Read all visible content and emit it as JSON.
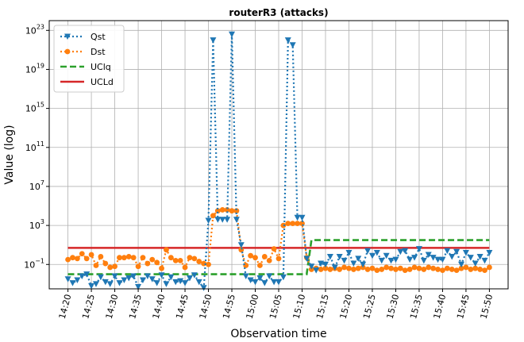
{
  "chart_data": {
    "type": "line",
    "title": "routerR3 (attacks)",
    "xlabel": "Observation time",
    "ylabel": "Value (log)",
    "y_scale": "log",
    "ylim_log10": [
      -3.5,
      24
    ],
    "y_ticks": [
      {
        "exp": -1,
        "base": "10",
        "sup": "−1"
      },
      {
        "exp": 3,
        "base": "10",
        "sup": "3"
      },
      {
        "exp": 7,
        "base": "10",
        "sup": "7"
      },
      {
        "exp": 11,
        "base": "10",
        "sup": "11"
      },
      {
        "exp": 15,
        "base": "10",
        "sup": "15"
      },
      {
        "exp": 19,
        "base": "10",
        "sup": "19"
      },
      {
        "exp": 23,
        "base": "10",
        "sup": "23"
      }
    ],
    "x_ticks": [
      "14:20",
      "14:25",
      "14:30",
      "14:35",
      "14:40",
      "14:45",
      "14:50",
      "14:55",
      "15:00",
      "15:05",
      "15:10",
      "15:15",
      "15:20",
      "15:25",
      "15:30",
      "15:35",
      "15:40",
      "15:45",
      "15:50"
    ],
    "x_range": [
      "14:20",
      "15:50"
    ],
    "grid": true,
    "legend_position": "top-left",
    "series": [
      {
        "name": "Qst",
        "style": "dotted",
        "marker": "triangle-down",
        "color": "#1f77b4"
      },
      {
        "name": "Dst",
        "style": "dotted",
        "marker": "circle",
        "color": "#ff7f0e"
      },
      {
        "name": "UClq",
        "style": "dashed",
        "color": "#2ca02c"
      },
      {
        "name": "UCLd",
        "style": "solid",
        "color": "#d62728"
      }
    ],
    "times": [
      "14:20",
      "14:21",
      "14:22",
      "14:23",
      "14:24",
      "14:25",
      "14:26",
      "14:27",
      "14:28",
      "14:29",
      "14:30",
      "14:31",
      "14:32",
      "14:33",
      "14:34",
      "14:35",
      "14:36",
      "14:37",
      "14:38",
      "14:39",
      "14:40",
      "14:41",
      "14:42",
      "14:43",
      "14:44",
      "14:45",
      "14:46",
      "14:47",
      "14:48",
      "14:49",
      "14:50",
      "14:51",
      "14:52",
      "14:53",
      "14:54",
      "14:55",
      "14:56",
      "14:57",
      "14:58",
      "14:59",
      "15:00",
      "15:01",
      "15:02",
      "15:03",
      "15:04",
      "15:05",
      "15:06",
      "15:07",
      "15:08",
      "15:09",
      "15:10",
      "15:11",
      "15:12",
      "15:13",
      "15:14",
      "15:15",
      "15:16",
      "15:17",
      "15:18",
      "15:19",
      "15:20",
      "15:21",
      "15:22",
      "15:23",
      "15:24",
      "15:25",
      "15:26",
      "15:27",
      "15:28",
      "15:29",
      "15:30",
      "15:31",
      "15:32",
      "15:33",
      "15:34",
      "15:35",
      "15:36",
      "15:37",
      "15:38",
      "15:39",
      "15:40",
      "15:41",
      "15:42",
      "15:43",
      "15:44",
      "15:45",
      "15:46",
      "15:47",
      "15:48",
      "15:49",
      "15:50"
    ],
    "Qst_log10": [
      -2.5,
      -2.9,
      -2.6,
      -2.2,
      -2.0,
      -3.2,
      -3.0,
      -2.3,
      -2.8,
      -3.0,
      -2.2,
      -2.9,
      -2.6,
      -2.4,
      -2.2,
      -3.3,
      -2.6,
      -2.2,
      -2.5,
      -2.9,
      -2.1,
      -3.0,
      -2.3,
      -2.8,
      -2.7,
      -2.9,
      -2.4,
      -2.1,
      -2.8,
      -3.4,
      3.5,
      22.0,
      3.6,
      3.6,
      3.6,
      22.6,
      3.6,
      1.0,
      -2.2,
      -2.6,
      -2.8,
      -2.4,
      -2.9,
      -2.2,
      -2.8,
      -2.8,
      -2.3,
      22.0,
      21.5,
      3.8,
      3.8,
      -0.4,
      -1.2,
      -1.6,
      -0.9,
      -1.0,
      -0.2,
      -1.3,
      -0.2,
      -0.6,
      0.2,
      -0.9,
      -0.4,
      -1.0,
      0.4,
      -0.1,
      0.2,
      -0.6,
      -0.1,
      -0.6,
      -0.5,
      0.3,
      0.4,
      -0.5,
      -0.3,
      0.6,
      -0.6,
      0.0,
      -0.3,
      -0.5,
      -0.5,
      0.4,
      -0.2,
      0.3,
      -1.0,
      0.2,
      -0.3,
      -0.9,
      -0.2,
      -0.6,
      0.2
    ],
    "Dst_log10": [
      -0.5,
      -0.3,
      -0.4,
      0.1,
      -0.4,
      0.0,
      -1.1,
      -0.2,
      -0.9,
      -1.3,
      -1.2,
      -0.3,
      -0.3,
      -0.2,
      -0.3,
      -1.2,
      -0.3,
      -0.9,
      -0.5,
      -0.8,
      -1.4,
      0.5,
      -0.3,
      -0.6,
      -0.6,
      -1.3,
      -0.3,
      -0.4,
      -0.7,
      -0.9,
      -1.0,
      4.0,
      4.5,
      4.6,
      4.6,
      4.5,
      4.5,
      0.5,
      -1.1,
      -0.1,
      -0.3,
      -1.1,
      -0.2,
      -0.6,
      0.6,
      -0.4,
      3.0,
      3.2,
      3.2,
      3.2,
      3.2,
      -0.3,
      -1.5,
      -1.4,
      -1.5,
      -1.4,
      -1.5,
      -1.4,
      -1.5,
      -1.3,
      -1.4,
      -1.5,
      -1.4,
      -1.3,
      -1.5,
      -1.4,
      -1.6,
      -1.5,
      -1.3,
      -1.4,
      -1.5,
      -1.4,
      -1.6,
      -1.5,
      -1.3,
      -1.4,
      -1.5,
      -1.3,
      -1.4,
      -1.5,
      -1.6,
      -1.4,
      -1.5,
      -1.6,
      -1.4,
      -1.3,
      -1.5,
      -1.4,
      -1.5,
      -1.6,
      -1.3
    ],
    "UClq_log10": [
      [
        14.333,
        -2.0
      ],
      [
        15.183,
        -2.0
      ],
      [
        15.2,
        1.5
      ],
      [
        15.833,
        1.5
      ]
    ],
    "UCLd_log10": [
      [
        14.333,
        0.7
      ],
      [
        15.833,
        0.7
      ]
    ]
  }
}
